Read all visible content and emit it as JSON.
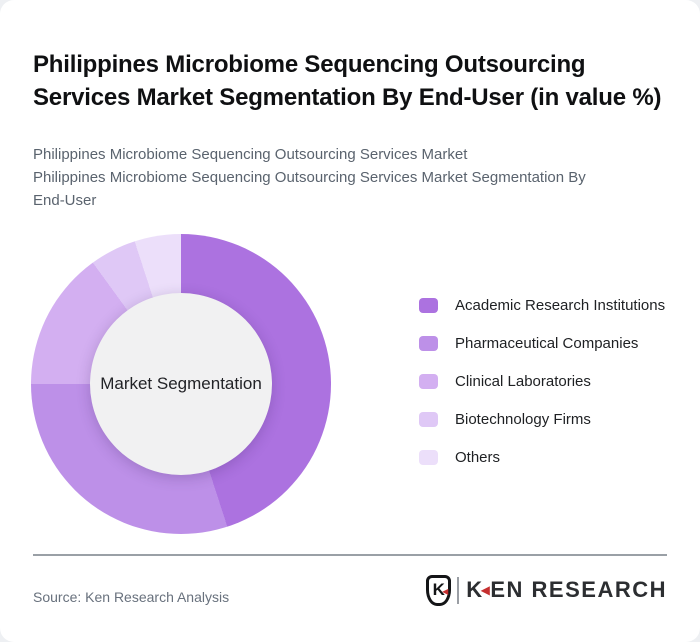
{
  "header": {
    "title": "Philippines Microbiome Sequencing Outsourcing Services Market Segmentation By End-User (in value %)",
    "subtitle_1": "Philippines Microbiome Sequencing Outsourcing Services Market",
    "subtitle_2": "Philippines Microbiome Sequencing Outsourcing Services Market Segmentation By End-User"
  },
  "chart_data": {
    "type": "pie",
    "subtype": "donut",
    "title": "Market Segmentation",
    "center_label": "Market Segmentation",
    "unit": "%",
    "start_angle_deg": 0,
    "direction": "clockwise",
    "legend_position": "right",
    "categories": [
      "Academic Research Institutions",
      "Pharmaceutical Companies",
      "Clinical Laboratories",
      "Biotechnology Firms",
      "Others"
    ],
    "values": [
      45,
      30,
      15,
      5,
      5
    ],
    "series": [
      {
        "label": "Academic Research Institutions",
        "value": 45,
        "color": "#ac72e0"
      },
      {
        "label": "Pharmaceutical Companies",
        "value": 30,
        "color": "#bd90e8"
      },
      {
        "label": "Clinical Laboratories",
        "value": 15,
        "color": "#d3aff1"
      },
      {
        "label": "Biotechnology Firms",
        "value": 5,
        "color": "#dfc8f6"
      },
      {
        "label": "Others",
        "value": 5,
        "color": "#ecdffa"
      }
    ],
    "hole_color": "#f1f1f2"
  },
  "footer": {
    "source_text": "Source: Ken Research Analysis",
    "logo": {
      "badge_letter": "K",
      "arrow_glyph": "◀",
      "wordmark_first": "K",
      "wordmark_rest": "EN RESEARCH",
      "accent_color": "#c62f2f"
    }
  }
}
